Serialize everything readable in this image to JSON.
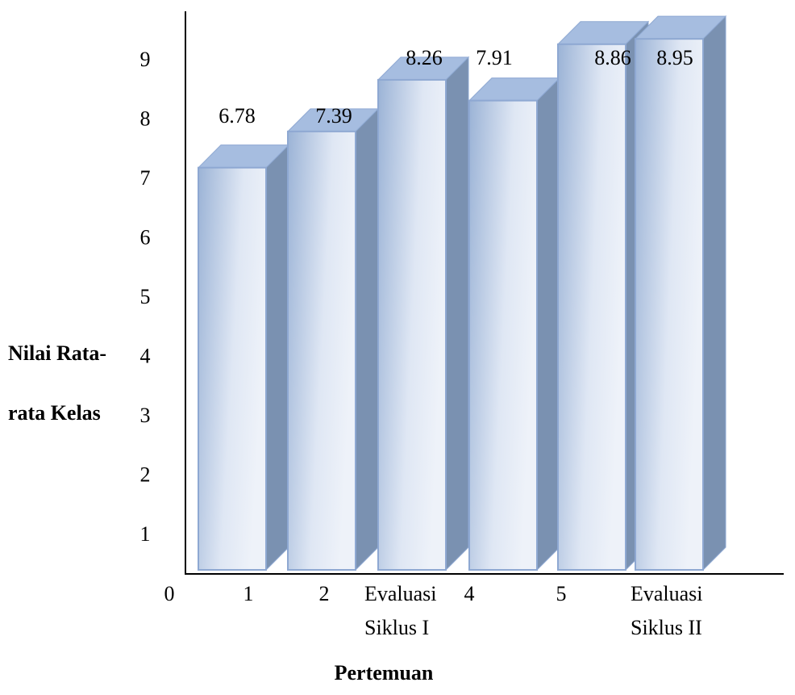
{
  "chart_data": {
    "type": "bar",
    "style": "3d-column",
    "title": "",
    "ylabel_lines": [
      "Nilai Rata-",
      "rata Kelas"
    ],
    "xlabel": "Pertemuan",
    "categories": [
      [
        "1"
      ],
      [
        "2"
      ],
      [
        "Evaluasi",
        "Siklus I"
      ],
      [
        "4"
      ],
      [
        "5"
      ],
      [
        "Evaluasi",
        "Siklus II"
      ]
    ],
    "values": [
      6.78,
      7.39,
      8.26,
      7.91,
      8.86,
      8.95
    ],
    "value_labels": [
      "6.78",
      "7.39",
      "8.26",
      "7.91",
      "8.86",
      "8.95"
    ],
    "ylim": [
      0,
      9
    ],
    "yticks": [
      "0",
      "1",
      "2",
      "3",
      "4",
      "5",
      "6",
      "7",
      "8",
      "9"
    ],
    "grid": false,
    "legend": "none",
    "colors": {
      "front_light": "#e2e9f5",
      "front_dark": "#9bb3d6",
      "top": "#a6bde0",
      "side": "#7a91b1",
      "edge": "#8ea8d2"
    }
  }
}
